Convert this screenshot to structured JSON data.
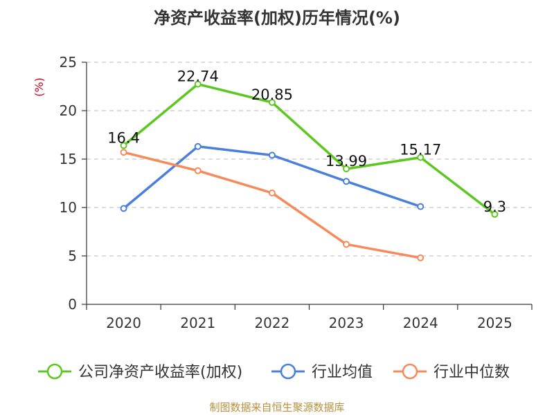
{
  "chart_data": {
    "type": "line",
    "title": "净资产收益率(加权)历年情况(%)",
    "ylabel": "(%)",
    "xlabel": "",
    "categories": [
      "2020",
      "2021",
      "2022",
      "2023",
      "2024",
      "2025"
    ],
    "yticks": [
      "0",
      "5",
      "10",
      "15",
      "20",
      "25"
    ],
    "ylim": [
      0,
      25
    ],
    "grid": true,
    "legend_position": "bottom",
    "series": [
      {
        "name": "公司净资产收益率(加权)",
        "color": "#5cc71f",
        "values": [
          16.4,
          22.74,
          20.85,
          13.99,
          15.17,
          9.3
        ],
        "data_labels": [
          "16.4",
          "22.74",
          "20.85",
          "13.99",
          "15.17",
          "9.3"
        ]
      },
      {
        "name": "行业均值",
        "color": "#4a7fdb",
        "values": [
          9.9,
          16.3,
          15.4,
          12.7,
          10.1,
          null
        ]
      },
      {
        "name": "行业中位数",
        "color": "#f68a5a",
        "values": [
          15.7,
          13.8,
          11.5,
          6.2,
          4.8,
          null
        ]
      }
    ]
  },
  "source": "制图数据来自恒生聚源数据库"
}
